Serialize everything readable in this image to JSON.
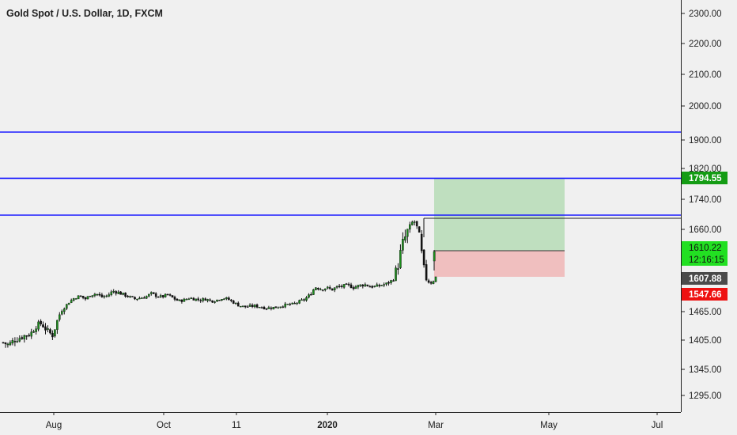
{
  "chart_data": {
    "type": "candlestick",
    "title": "Gold Spot / U.S. Dollar, 1D, FXCM",
    "y_axis": {
      "ticks": [
        "2300.00",
        "2200.00",
        "2100.00",
        "2000.00",
        "1900.00",
        "1820.00",
        "1740.00",
        "1660.00",
        "1465.00",
        "1405.00",
        "1345.00",
        "1295.00"
      ]
    },
    "x_axis": {
      "labels": [
        {
          "text": "Aug",
          "bold": false
        },
        {
          "text": "Oct",
          "bold": false
        },
        {
          "text": "11",
          "bold": false
        },
        {
          "text": "2020",
          "bold": true
        },
        {
          "text": "Mar",
          "bold": false
        },
        {
          "text": "May",
          "bold": false
        },
        {
          "text": "Jul",
          "bold": false
        }
      ]
    },
    "horizontal_levels": [
      {
        "name": "resistance-top",
        "value": 1930,
        "color": "#1a1aff"
      },
      {
        "name": "resistance-mid",
        "value": 1794.55,
        "color": "#1a1aff"
      },
      {
        "name": "resistance-low",
        "value": 1703,
        "color": "#1a1aff"
      }
    ],
    "position": {
      "entry": 1610.22,
      "target": 1794.55,
      "stop": 1547.66,
      "profit_color": "#bfdfbf",
      "loss_color": "#f0bfbf"
    },
    "price_tags": [
      {
        "name": "target-price",
        "label": "1794.55",
        "value": 1794.55,
        "bg": "#149c14",
        "dark": false
      },
      {
        "name": "entry-price",
        "label": "1610.22",
        "value": 1610.22,
        "bg": "#22e022",
        "dark": true
      },
      {
        "name": "countdown",
        "label": "12:16:15",
        "value": 1590,
        "bg": "#22e022",
        "dark": true
      },
      {
        "name": "last-price",
        "label": "1607.88",
        "value": 1607.88,
        "bg": "#4a4a4a",
        "dark": false
      },
      {
        "name": "stop-price",
        "label": "1547.66",
        "value": 1547.66,
        "bg": "#ee1111",
        "dark": false
      }
    ],
    "price_path": [
      1400,
      1395,
      1405,
      1410,
      1415,
      1418,
      1435,
      1440,
      1425,
      1415,
      1450,
      1480,
      1510,
      1530,
      1540,
      1525,
      1545,
      1550,
      1535,
      1540,
      1560,
      1555,
      1545,
      1535,
      1525,
      1530,
      1535,
      1550,
      1540,
      1535,
      1545,
      1530,
      1515,
      1520,
      1530,
      1525,
      1520,
      1525,
      1515,
      1520,
      1530,
      1525,
      1510,
      1495,
      1488,
      1490,
      1492,
      1488,
      1482,
      1484,
      1486,
      1494,
      1498,
      1500,
      1512,
      1522,
      1545,
      1575,
      1568,
      1572,
      1565,
      1575,
      1578,
      1582,
      1574,
      1580,
      1585,
      1578,
      1576,
      1582,
      1587,
      1600,
      1620,
      1645,
      1660,
      1685,
      1650,
      1610,
      1590,
      1607.88
    ],
    "grid": false,
    "colors": {
      "up": "#1c8c1c",
      "down": "#111111",
      "background": "#f0f0f0"
    }
  }
}
